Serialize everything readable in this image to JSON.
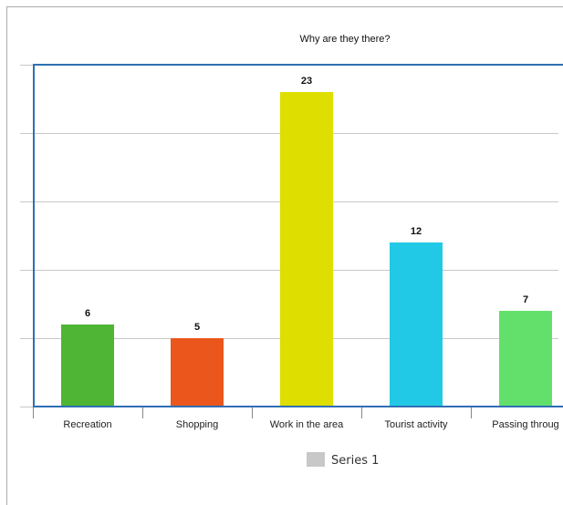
{
  "chart_data": {
    "type": "bar",
    "title": "Why are they there?",
    "categories": [
      "Recreation",
      "Shopping",
      "Work in the area",
      "Tourist activity",
      "Passing throug"
    ],
    "values": [
      6,
      5,
      23,
      12,
      7
    ],
    "colors": [
      "#4fb535",
      "#ea561c",
      "#dede00",
      "#22c9e6",
      "#63e06b"
    ],
    "series": [
      {
        "name": "Series 1",
        "values": [
          6,
          5,
          23,
          12,
          7
        ]
      }
    ],
    "ylim": [
      0,
      25
    ],
    "grid": true,
    "legend": "bottom",
    "xlabel": "",
    "ylabel": ""
  },
  "style": {
    "axis_color": "#2f6fb5",
    "grid_color": "#c8c8c8",
    "legend_swatch_color": "#c8c8c8",
    "frame_border_color": "#aaaaaa"
  }
}
